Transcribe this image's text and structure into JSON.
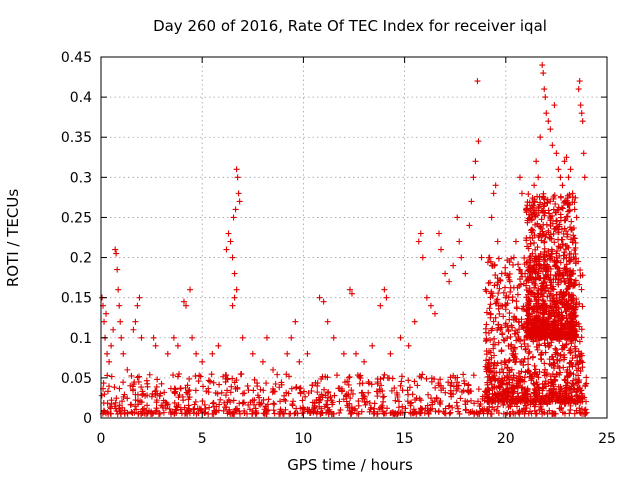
{
  "chart_data": {
    "type": "scatter",
    "title": "Day 260 of 2016, Rate Of TEC Index for receiver iqal",
    "xlabel": "GPS time / hours",
    "ylabel": "ROTI / TECUs",
    "xlim": [
      0,
      25
    ],
    "ylim": [
      0,
      0.45
    ],
    "xticks": [
      0,
      5,
      10,
      15,
      20,
      25
    ],
    "xtick_labels": [
      "0",
      "5",
      "10",
      "15",
      "20",
      "25"
    ],
    "yticks": [
      0,
      0.05,
      0.1,
      0.15,
      0.2,
      0.25,
      0.3,
      0.35,
      0.4,
      0.45
    ],
    "ytick_labels": [
      "0",
      "0.05",
      "0.1",
      "0.15",
      "0.2",
      "0.25",
      "0.3",
      "0.35",
      "0.4",
      "0.45"
    ],
    "grid": true,
    "marker": "+",
    "color": "#e00000",
    "series": [
      {
        "name": "ROTI",
        "points": [
          [
            0.05,
            0.15
          ],
          [
            0.1,
            0.14
          ],
          [
            0.15,
            0.12
          ],
          [
            0.2,
            0.1
          ],
          [
            0.25,
            0.13
          ],
          [
            0.3,
            0.08
          ],
          [
            0.4,
            0.07
          ],
          [
            0.5,
            0.09
          ],
          [
            0.6,
            0.11
          ],
          [
            0.7,
            0.21
          ],
          [
            0.75,
            0.205
          ],
          [
            0.8,
            0.185
          ],
          [
            0.85,
            0.16
          ],
          [
            0.9,
            0.14
          ],
          [
            0.95,
            0.12
          ],
          [
            1.0,
            0.1
          ],
          [
            1.1,
            0.08
          ],
          [
            1.3,
            0.06
          ],
          [
            1.6,
            0.11
          ],
          [
            1.7,
            0.12
          ],
          [
            1.8,
            0.14
          ],
          [
            1.9,
            0.15
          ],
          [
            2.0,
            0.1
          ],
          [
            2.6,
            0.1
          ],
          [
            2.7,
            0.09
          ],
          [
            3.3,
            0.08
          ],
          [
            3.6,
            0.1
          ],
          [
            3.8,
            0.09
          ],
          [
            4.1,
            0.145
          ],
          [
            4.2,
            0.14
          ],
          [
            4.4,
            0.16
          ],
          [
            4.5,
            0.1
          ],
          [
            4.7,
            0.08
          ],
          [
            5.0,
            0.07
          ],
          [
            5.5,
            0.08
          ],
          [
            5.8,
            0.09
          ],
          [
            6.2,
            0.21
          ],
          [
            6.3,
            0.23
          ],
          [
            6.4,
            0.22
          ],
          [
            6.5,
            0.2
          ],
          [
            6.55,
            0.25
          ],
          [
            6.6,
            0.18
          ],
          [
            6.65,
            0.26
          ],
          [
            6.7,
            0.31
          ],
          [
            6.75,
            0.3
          ],
          [
            6.8,
            0.28
          ],
          [
            6.85,
            0.27
          ],
          [
            6.7,
            0.16
          ],
          [
            6.6,
            0.15
          ],
          [
            6.5,
            0.14
          ],
          [
            7.0,
            0.1
          ],
          [
            7.5,
            0.08
          ],
          [
            8.0,
            0.07
          ],
          [
            8.2,
            0.1
          ],
          [
            8.5,
            0.06
          ],
          [
            9.2,
            0.08
          ],
          [
            9.4,
            0.1
          ],
          [
            9.6,
            0.12
          ],
          [
            9.8,
            0.07
          ],
          [
            10.2,
            0.08
          ],
          [
            10.8,
            0.15
          ],
          [
            11.0,
            0.145
          ],
          [
            11.2,
            0.12
          ],
          [
            11.5,
            0.1
          ],
          [
            12.0,
            0.08
          ],
          [
            12.3,
            0.16
          ],
          [
            12.4,
            0.155
          ],
          [
            12.6,
            0.08
          ],
          [
            13.0,
            0.07
          ],
          [
            13.4,
            0.09
          ],
          [
            13.8,
            0.14
          ],
          [
            14.0,
            0.16
          ],
          [
            14.1,
            0.15
          ],
          [
            14.3,
            0.08
          ],
          [
            14.8,
            0.1
          ],
          [
            15.2,
            0.09
          ],
          [
            15.5,
            0.12
          ],
          [
            15.7,
            0.22
          ],
          [
            15.8,
            0.23
          ],
          [
            15.9,
            0.2
          ],
          [
            16.1,
            0.15
          ],
          [
            16.3,
            0.14
          ],
          [
            16.5,
            0.13
          ],
          [
            16.7,
            0.23
          ],
          [
            16.8,
            0.21
          ],
          [
            17.0,
            0.18
          ],
          [
            17.2,
            0.17
          ],
          [
            17.4,
            0.19
          ],
          [
            17.6,
            0.25
          ],
          [
            17.7,
            0.22
          ],
          [
            17.8,
            0.2
          ],
          [
            18.0,
            0.18
          ],
          [
            18.2,
            0.24
          ],
          [
            18.3,
            0.27
          ],
          [
            18.4,
            0.3
          ],
          [
            18.5,
            0.32
          ],
          [
            18.6,
            0.42
          ],
          [
            18.65,
            0.345
          ],
          [
            18.8,
            0.2
          ],
          [
            19.0,
            0.16
          ],
          [
            19.2,
            0.2
          ],
          [
            19.3,
            0.25
          ],
          [
            19.4,
            0.28
          ],
          [
            19.5,
            0.29
          ],
          [
            19.6,
            0.22
          ],
          [
            19.8,
            0.18
          ],
          [
            20.0,
            0.15
          ],
          [
            20.2,
            0.17
          ],
          [
            20.4,
            0.2
          ],
          [
            20.5,
            0.22
          ],
          [
            20.7,
            0.3
          ],
          [
            20.8,
            0.28
          ],
          [
            21.0,
            0.26
          ],
          [
            21.2,
            0.25
          ],
          [
            21.4,
            0.29
          ],
          [
            21.5,
            0.32
          ],
          [
            21.6,
            0.3
          ],
          [
            21.7,
            0.35
          ],
          [
            21.8,
            0.44
          ],
          [
            21.85,
            0.43
          ],
          [
            21.9,
            0.41
          ],
          [
            21.95,
            0.4
          ],
          [
            22.0,
            0.38
          ],
          [
            22.1,
            0.37
          ],
          [
            22.2,
            0.36
          ],
          [
            22.3,
            0.34
          ],
          [
            22.4,
            0.39
          ],
          [
            22.5,
            0.33
          ],
          [
            22.6,
            0.31
          ],
          [
            22.7,
            0.3
          ],
          [
            22.8,
            0.29
          ],
          [
            22.9,
            0.32
          ],
          [
            23.0,
            0.325
          ],
          [
            23.1,
            0.3
          ],
          [
            23.2,
            0.31
          ],
          [
            23.3,
            0.28
          ],
          [
            23.4,
            0.26
          ],
          [
            23.5,
            0.25
          ],
          [
            23.6,
            0.41
          ],
          [
            23.65,
            0.42
          ],
          [
            23.7,
            0.39
          ],
          [
            23.75,
            0.38
          ],
          [
            23.8,
            0.37
          ],
          [
            23.85,
            0.33
          ],
          [
            23.9,
            0.3
          ]
        ],
        "dense_bands": [
          {
            "x_range": [
              0,
              24
            ],
            "y_range": [
              0.005,
              0.055
            ]
          },
          {
            "x_range": [
              19,
              23.8
            ],
            "y_range": [
              0.02,
              0.2
            ]
          },
          {
            "x_range": [
              21,
              23.5
            ],
            "y_range": [
              0.1,
              0.28
            ]
          }
        ]
      }
    ]
  }
}
